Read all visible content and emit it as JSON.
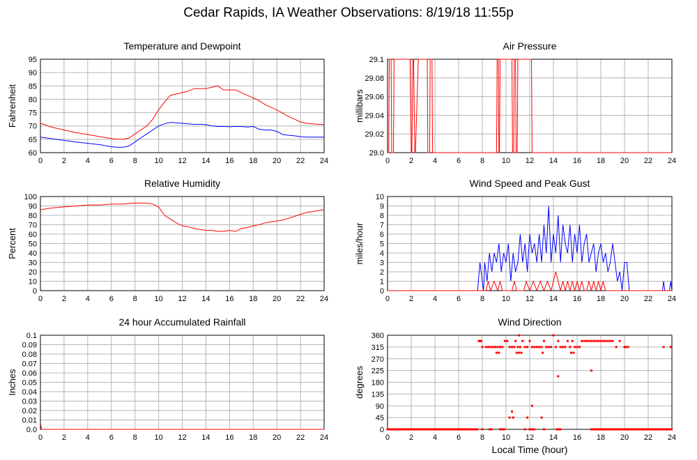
{
  "page": {
    "title": "Cedar Rapids, IA Weather Observations: 8/19/18 11:55p",
    "xlabel_shared": "Local Time (hour)"
  },
  "colors": {
    "red": "#ff0000",
    "blue": "#0000ff",
    "grid": "#b4b4b4"
  },
  "chart_data": [
    {
      "id": "temp",
      "type": "line",
      "title": "Temperature and Dewpoint",
      "ylabel": "Fahrenheit",
      "xlim": [
        0,
        24
      ],
      "ylim": [
        60,
        95
      ],
      "xticks": [
        "0",
        "2",
        "4",
        "6",
        "8",
        "10",
        "12",
        "14",
        "16",
        "18",
        "20",
        "22",
        "24"
      ],
      "yticks": [
        "60",
        "65",
        "70",
        "75",
        "80",
        "85",
        "90",
        "95"
      ],
      "grid": true,
      "series": [
        {
          "color": "#ff0000",
          "x": [
            0,
            1,
            2,
            3,
            4,
            5,
            6,
            6.5,
            7,
            7.5,
            8,
            8.5,
            9,
            9.5,
            10,
            10.5,
            11,
            11.5,
            12,
            12.5,
            13,
            13.5,
            14,
            14.5,
            15,
            15.5,
            16,
            16.5,
            17,
            17.5,
            18,
            18.5,
            19,
            19.5,
            20,
            20.5,
            21,
            21.5,
            22,
            22.5,
            23,
            23.5,
            24
          ],
          "y": [
            71,
            69.5,
            68.5,
            67.5,
            66.8,
            66,
            65.3,
            65,
            65,
            65.5,
            67,
            68.5,
            70,
            72.5,
            76,
            79,
            81.5,
            82,
            82.5,
            83,
            84,
            84,
            84,
            84.5,
            85,
            83.5,
            83.5,
            83.5,
            82.5,
            81.5,
            80.5,
            79.5,
            78,
            77,
            76,
            74.8,
            73.5,
            72.5,
            71.5,
            71,
            70.8,
            70.6,
            70.5
          ]
        },
        {
          "color": "#0000ff",
          "x": [
            0,
            1,
            2,
            3,
            4,
            5,
            6,
            6.5,
            7,
            7.5,
            8,
            8.5,
            9,
            9.5,
            10,
            10.5,
            11,
            11.5,
            12,
            12.5,
            13,
            13.5,
            14,
            14.5,
            15,
            15.5,
            16,
            16.5,
            17,
            17.5,
            18,
            18.5,
            19,
            19.5,
            20,
            20.5,
            21,
            21.5,
            22,
            22.5,
            23,
            23.5,
            24
          ],
          "y": [
            65.8,
            65.2,
            64.6,
            64,
            63.5,
            63,
            62.2,
            62,
            62,
            62.5,
            64,
            65.5,
            67,
            68.5,
            70,
            70.8,
            71.3,
            71.2,
            71,
            70.8,
            70.6,
            70.6,
            70.5,
            70,
            69.8,
            69.8,
            69.7,
            69.8,
            69.8,
            69.6,
            69.8,
            68.8,
            68.5,
            68.5,
            68,
            66.8,
            66.5,
            66.3,
            66,
            65.8,
            65.8,
            65.8,
            65.8
          ]
        }
      ]
    },
    {
      "id": "pressure",
      "type": "line",
      "title": "Air Pressure",
      "ylabel": "millibars",
      "xlim": [
        0,
        24
      ],
      "ylim": [
        29.0,
        29.1
      ],
      "xticks": [
        "0",
        "2",
        "4",
        "6",
        "8",
        "10",
        "12",
        "14",
        "16",
        "18",
        "20",
        "22",
        "24"
      ],
      "yticks": [
        "29.0",
        "29.02",
        "29.04",
        "29.06",
        "29.08",
        "29.1"
      ],
      "grid": true,
      "series": [
        {
          "color": "#ff0000",
          "x": [
            0,
            0.1,
            0.15,
            0.3,
            0.35,
            0.5,
            0.55,
            0.7,
            1.9,
            2.0,
            2.05,
            2.15,
            2.2,
            2.3,
            2.35,
            2.6,
            2.7,
            3.35,
            3.4,
            3.55,
            3.6,
            3.75,
            3.8,
            9.2,
            9.25,
            9.35,
            9.4,
            9.45,
            9.5,
            10.5,
            10.55,
            10.65,
            10.7,
            10.8,
            10.85,
            10.95,
            11.0,
            11.1,
            11.15,
            12.15,
            12.2,
            24
          ],
          "y": [
            29.0,
            29.0,
            29.1,
            29.1,
            29.0,
            29.0,
            29.1,
            29.1,
            29.1,
            29.0,
            29.0,
            29.1,
            29.1,
            29.0,
            29.0,
            29.1,
            29.1,
            29.1,
            29.0,
            29.0,
            29.1,
            29.1,
            29.0,
            29.0,
            29.1,
            29.1,
            29.0,
            29.0,
            29.1,
            29.1,
            29.0,
            29.0,
            29.1,
            29.1,
            29.0,
            29.0,
            29.1,
            29.1,
            29.1,
            29.1,
            29.0,
            29.0
          ]
        }
      ]
    },
    {
      "id": "rh",
      "type": "line",
      "title": "Relative Humidity",
      "ylabel": "Percent",
      "xlim": [
        0,
        24
      ],
      "ylim": [
        0,
        100
      ],
      "xticks": [
        "0",
        "2",
        "4",
        "6",
        "8",
        "10",
        "12",
        "14",
        "16",
        "18",
        "20",
        "22",
        "24"
      ],
      "yticks": [
        "0",
        "10",
        "20",
        "30",
        "40",
        "50",
        "60",
        "70",
        "80",
        "90",
        "100"
      ],
      "grid": true,
      "series": [
        {
          "color": "#ff0000",
          "x": [
            0,
            1,
            2,
            3,
            4,
            5,
            6,
            7,
            8,
            8.5,
            9,
            9.5,
            10,
            10.5,
            11,
            11.5,
            12,
            12.5,
            13,
            13.5,
            14,
            14.5,
            15,
            15.5,
            16,
            16.5,
            17,
            17.5,
            18,
            18.5,
            19,
            19.5,
            20,
            20.5,
            21,
            21.5,
            22,
            22.5,
            23,
            23.5,
            24
          ],
          "y": [
            86,
            88,
            89,
            90,
            91,
            91,
            92,
            92,
            93,
            93,
            93,
            92,
            89,
            80,
            76,
            72,
            69,
            68,
            66,
            65,
            64,
            64,
            63,
            63,
            64,
            63,
            66,
            67,
            69,
            70,
            72,
            73,
            74,
            75,
            77,
            79,
            81,
            83,
            84,
            85,
            86
          ]
        }
      ]
    },
    {
      "id": "wind",
      "type": "line",
      "title": "Wind Speed and Peak Gust",
      "ylabel": "miles/hour",
      "xlim": [
        0,
        24
      ],
      "ylim": [
        0,
        10
      ],
      "xticks": [
        "0",
        "2",
        "4",
        "6",
        "8",
        "10",
        "12",
        "14",
        "16",
        "18",
        "20",
        "22",
        "24"
      ],
      "yticks": [
        "0",
        "1",
        "2",
        "3",
        "4",
        "5",
        "6",
        "7",
        "8",
        "9",
        "10"
      ],
      "grid": true,
      "series": [
        {
          "color": "#0000ff",
          "x": [
            0,
            7.6,
            7.8,
            7.9,
            8.1,
            8.2,
            8.4,
            8.6,
            8.8,
            9.0,
            9.2,
            9.4,
            9.6,
            9.8,
            10.0,
            10.2,
            10.4,
            10.6,
            10.8,
            11.0,
            11.2,
            11.4,
            11.6,
            11.8,
            12.0,
            12.2,
            12.4,
            12.6,
            12.8,
            13.0,
            13.2,
            13.4,
            13.6,
            13.8,
            14.0,
            14.2,
            14.4,
            14.6,
            14.8,
            15.0,
            15.2,
            15.4,
            15.6,
            15.8,
            16.0,
            16.2,
            16.4,
            16.6,
            16.8,
            17.0,
            17.2,
            17.4,
            17.6,
            17.8,
            18.0,
            18.2,
            18.4,
            18.6,
            18.8,
            19.0,
            19.2,
            19.4,
            19.6,
            19.8,
            20.0,
            20.2,
            20.4,
            23.2,
            23.3,
            23.4,
            23.8,
            23.9,
            24
          ],
          "y": [
            0,
            0,
            3,
            2,
            0,
            3,
            1,
            4,
            2,
            4,
            3,
            5,
            2,
            4,
            3,
            5,
            1,
            4,
            2,
            3,
            6,
            3,
            5,
            2,
            6,
            4,
            5,
            3,
            6,
            3,
            7,
            4,
            9,
            3,
            6,
            4,
            8,
            3,
            7,
            5,
            4,
            7,
            3,
            6,
            4,
            7,
            3,
            5,
            6,
            3,
            4,
            5,
            2,
            4,
            5,
            3,
            4,
            2,
            3,
            5,
            3,
            1,
            2,
            0,
            3,
            3,
            0,
            0,
            1,
            0,
            0,
            1,
            0
          ]
        },
        {
          "color": "#ff0000",
          "x": [
            0,
            8.3,
            8.5,
            8.7,
            9.0,
            9.3,
            9.5,
            9.7,
            10.5,
            10.7,
            10.9,
            11.5,
            11.7,
            12.0,
            12.3,
            12.6,
            12.9,
            13.2,
            13.5,
            13.8,
            14.0,
            14.2,
            14.4,
            14.6,
            14.8,
            15.0,
            15.2,
            15.4,
            15.6,
            15.8,
            16.0,
            16.2,
            16.4,
            16.6,
            16.8,
            17.0,
            17.2,
            17.4,
            17.6,
            17.8,
            18.0,
            18.2,
            18.4,
            18.6,
            24
          ],
          "y": [
            0,
            0,
            1,
            0,
            1,
            0,
            1,
            0,
            0,
            1,
            0,
            0,
            1,
            0,
            1,
            0,
            1,
            0,
            1,
            0,
            1,
            2,
            1,
            0,
            1,
            0,
            1,
            0,
            1,
            0,
            1,
            0,
            1,
            0,
            0,
            1,
            0,
            1,
            0,
            1,
            0,
            1,
            0,
            0,
            0
          ]
        }
      ]
    },
    {
      "id": "rain",
      "type": "line",
      "title": "24 hour Accumulated Rainfall",
      "ylabel": "Inches",
      "xlim": [
        0,
        24
      ],
      "ylim": [
        0,
        0.1
      ],
      "xticks": [
        "0",
        "2",
        "4",
        "6",
        "8",
        "10",
        "12",
        "14",
        "16",
        "18",
        "20",
        "22",
        "24"
      ],
      "yticks": [
        "0.0",
        "0.01",
        "0.02",
        "0.03",
        "0.04",
        "0.05",
        "0.06",
        "0.07",
        "0.08",
        "0.09",
        "0.1"
      ],
      "grid": true,
      "series": [
        {
          "color": "#ff0000",
          "x": [
            0,
            0.05,
            0.1,
            24
          ],
          "y": [
            0.006,
            0.004,
            0,
            0
          ]
        }
      ]
    },
    {
      "id": "winddir",
      "type": "scatter",
      "title": "Wind Direction",
      "ylabel": "degrees",
      "xlabel": "Local Time (hour)",
      "xlim": [
        0,
        24
      ],
      "ylim": [
        0,
        360
      ],
      "xticks": [
        "0",
        "2",
        "4",
        "6",
        "8",
        "10",
        "12",
        "14",
        "16",
        "18",
        "20",
        "22",
        "24"
      ],
      "yticks": [
        "0",
        "45",
        "90",
        "135",
        "180",
        "225",
        "270",
        "315",
        "360"
      ],
      "grid": true,
      "series": [
        {
          "color": "#ff0000",
          "x": [
            7.7,
            7.8,
            7.9,
            8.0,
            8.3,
            8.5,
            8.7,
            8.9,
            9.1,
            9.3,
            9.5,
            9.7,
            9.9,
            10.1,
            10.3,
            10.5,
            10.7,
            10.8,
            11.0,
            11.1,
            11.2,
            11.4,
            11.6,
            11.8,
            12.0,
            12.2,
            12.4,
            12.6,
            12.8,
            13.0,
            13.2,
            13.4,
            13.6,
            13.8,
            14.0,
            14.2,
            14.4,
            14.6,
            14.8,
            15.0,
            15.2,
            15.4,
            15.6,
            15.8,
            16.0,
            16.2,
            16.4,
            16.6,
            16.8,
            17.0,
            17.2,
            17.4,
            17.6,
            17.8,
            18.0,
            18.2,
            18.4,
            18.6,
            18.8,
            19.0,
            19.3,
            19.6,
            20.0,
            20.1,
            20.3,
            23.3,
            23.9,
            10.3,
            10.5,
            10.6,
            10.9,
            11.1,
            11.3,
            11.6,
            11.8,
            12.0,
            12.2,
            13.0,
            13.2,
            14.3,
            14.4,
            17.2,
            9.2,
            9.4,
            13.1,
            15.5,
            15.7,
            8.0,
            9.5
          ],
          "y": [
            338,
            338,
            338,
            315,
            315,
            315,
            315,
            315,
            315,
            315,
            315,
            315,
            338,
            338,
            315,
            315,
            315,
            338,
            315,
            360,
            315,
            338,
            315,
            315,
            338,
            315,
            315,
            315,
            315,
            315,
            338,
            315,
            315,
            315,
            360,
            315,
            338,
            315,
            315,
            315,
            338,
            315,
            338,
            315,
            315,
            315,
            338,
            338,
            338,
            338,
            338,
            338,
            338,
            338,
            338,
            338,
            338,
            338,
            338,
            338,
            315,
            338,
            315,
            315,
            315,
            315,
            315,
            45,
            68,
            45,
            293,
            293,
            293,
            0,
            45,
            0,
            90,
            45,
            0,
            0,
            203,
            225,
            293,
            293,
            293,
            293,
            293,
            0,
            0
          ]
        }
      ]
    }
  ]
}
